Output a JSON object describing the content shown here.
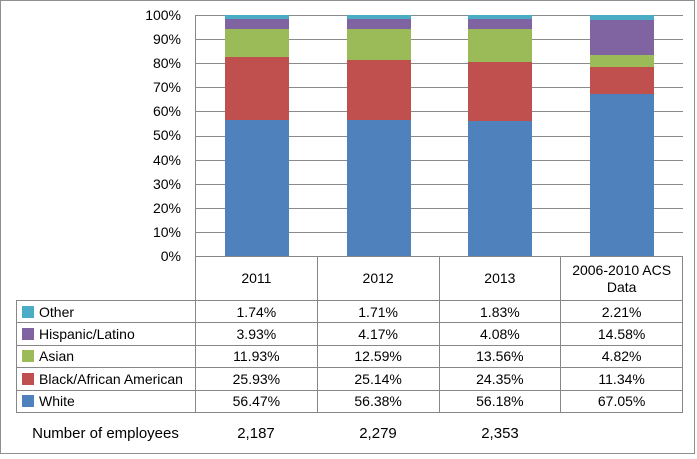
{
  "chart_data": {
    "type": "bar",
    "stacked": true,
    "percent_stacked": true,
    "title": "",
    "xlabel": "",
    "ylabel": "",
    "ylim": [
      0,
      100
    ],
    "grid": true,
    "categories": [
      "2011",
      "2012",
      "2013",
      "2006-2010 ACS Data"
    ],
    "series": [
      {
        "name": "White",
        "color": "#4F81BD",
        "values": [
          56.47,
          56.38,
          56.18,
          67.05
        ]
      },
      {
        "name": "Black/African American",
        "color": "#C0504D",
        "values": [
          25.93,
          25.14,
          24.35,
          11.34
        ]
      },
      {
        "name": "Asian",
        "color": "#9BBB59",
        "values": [
          11.93,
          12.59,
          13.56,
          4.82
        ]
      },
      {
        "name": "Hispanic/Latino",
        "color": "#8064A2",
        "values": [
          3.93,
          4.17,
          4.08,
          14.58
        ]
      },
      {
        "name": "Other",
        "color": "#4BACC6",
        "values": [
          1.74,
          1.71,
          1.83,
          2.21
        ]
      }
    ],
    "y_ticks": [
      "100%",
      "90%",
      "80%",
      "70%",
      "60%",
      "50%",
      "40%",
      "30%",
      "20%",
      "10%",
      "0%"
    ],
    "legend_position": "table-left"
  },
  "table": {
    "header": [
      "2011",
      "2012",
      "2013",
      "2006-2010 ACS Data"
    ],
    "rows": [
      {
        "label": "Other",
        "color": "#4BACC6",
        "values": [
          "1.74%",
          "1.71%",
          "1.83%",
          "2.21%"
        ]
      },
      {
        "label": "Hispanic/Latino",
        "color": "#8064A2",
        "values": [
          "3.93%",
          "4.17%",
          "4.08%",
          "14.58%"
        ]
      },
      {
        "label": "Asian",
        "color": "#9BBB59",
        "values": [
          "11.93%",
          "12.59%",
          "13.56%",
          "4.82%"
        ]
      },
      {
        "label": "Black/African American",
        "color": "#C0504D",
        "values": [
          "25.93%",
          "25.14%",
          "24.35%",
          "11.34%"
        ]
      },
      {
        "label": "White",
        "color": "#4F81BD",
        "values": [
          "56.47%",
          "56.38%",
          "56.18%",
          "67.05%"
        ]
      }
    ],
    "footer": {
      "label": "Number of employees",
      "values": [
        "2,187",
        "2,279",
        "2,353",
        ""
      ]
    }
  },
  "colors": {
    "border": "#878787",
    "gridline": "#8a8a8a",
    "text": "#000000",
    "background": "#ffffff"
  }
}
